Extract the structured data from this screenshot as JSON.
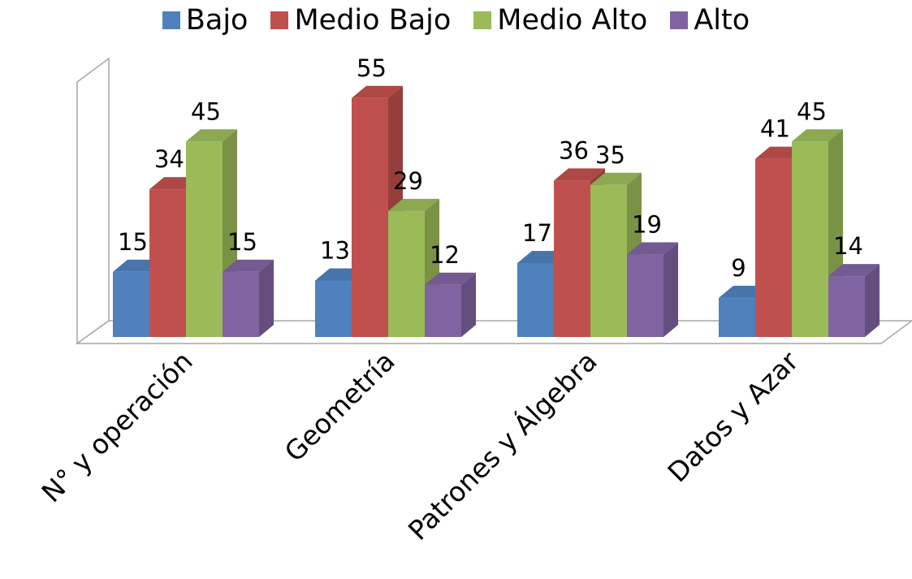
{
  "chart_data": {
    "type": "bar",
    "three_d": true,
    "categories": [
      "N° y operación",
      "Geometría",
      "Patrones y Álgebra",
      "Datos y Azar"
    ],
    "series": [
      {
        "name": "Bajo",
        "values": [
          15,
          13,
          17,
          9
        ],
        "color": "#4f81bd"
      },
      {
        "name": "Medio Bajo",
        "values": [
          34,
          55,
          36,
          41
        ],
        "color": "#c0504d"
      },
      {
        "name": "Medio Alto",
        "values": [
          45,
          29,
          35,
          45
        ],
        "color": "#9bbb59"
      },
      {
        "name": "Alto",
        "values": [
          15,
          12,
          19,
          14
        ],
        "color": "#8064a2"
      }
    ],
    "ylim": [
      0,
      55
    ],
    "legend_position": "top",
    "grid": false,
    "data_labels": true
  }
}
